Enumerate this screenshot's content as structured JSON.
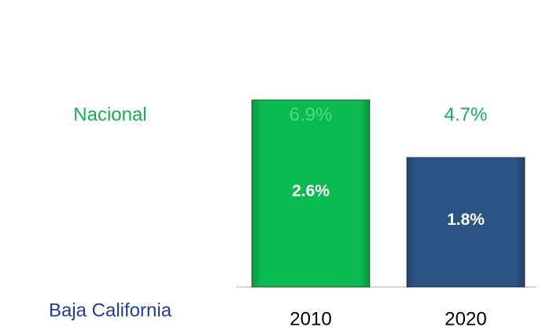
{
  "chart_data": {
    "type": "bar",
    "categories": [
      "2010",
      "2020"
    ],
    "series": [
      {
        "name": "Baja California",
        "values": [
          2.6,
          1.8
        ],
        "value_labels": [
          "2.6%",
          "1.8%"
        ],
        "colors": [
          "#0cba52",
          "#2a5484"
        ],
        "label_color": "#1f3d9c"
      },
      {
        "name": "Nacional",
        "values": [
          6.9,
          4.7
        ],
        "value_labels": [
          "6.9%",
          "4.7%"
        ],
        "color": "#12b24f"
      }
    ]
  }
}
